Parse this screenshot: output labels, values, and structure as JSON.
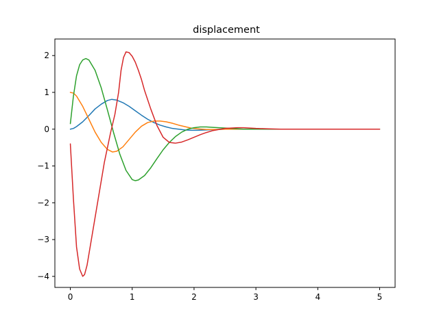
{
  "chart_data": {
    "type": "line",
    "title": "displacement",
    "xlabel": "",
    "ylabel": "",
    "xlim": [
      -0.25,
      5.25
    ],
    "ylim": [
      -4.3,
      2.45
    ],
    "x_ticks": [
      0,
      1,
      2,
      3,
      4,
      5
    ],
    "x_tick_labels": [
      "0",
      "1",
      "2",
      "3",
      "4",
      "5"
    ],
    "y_ticks": [
      -4,
      -3,
      -2,
      -1,
      0,
      1,
      2
    ],
    "y_tick_labels": [
      "−4",
      "−3",
      "−2",
      "−1",
      "0",
      "1",
      "2"
    ],
    "grid": false,
    "legend": "none",
    "series": [
      {
        "color": "#1f77b4",
        "linewidth": 1.5,
        "x": [
          0,
          0.05,
          0.1,
          0.2,
          0.3,
          0.4,
          0.5,
          0.6,
          0.67,
          0.75,
          0.85,
          0.95,
          1.05,
          1.15,
          1.25,
          1.35,
          1.45,
          1.55,
          1.65,
          1.75,
          1.85,
          1.95,
          2.05,
          2.2,
          2.35,
          2.5,
          2.7,
          3.0,
          3.5,
          4.0,
          4.5,
          5.0
        ],
        "y": [
          0,
          0.02,
          0.07,
          0.2,
          0.37,
          0.55,
          0.68,
          0.78,
          0.81,
          0.79,
          0.72,
          0.62,
          0.5,
          0.38,
          0.27,
          0.18,
          0.11,
          0.06,
          0.02,
          0.0,
          -0.02,
          -0.03,
          -0.03,
          -0.02,
          -0.01,
          0.0,
          0.0,
          0.0,
          0.0,
          0.0,
          0.0,
          0.0
        ]
      },
      {
        "color": "#ff7f0e",
        "linewidth": 1.5,
        "x": [
          0,
          0.05,
          0.1,
          0.2,
          0.3,
          0.4,
          0.5,
          0.6,
          0.68,
          0.75,
          0.85,
          0.95,
          1.05,
          1.15,
          1.25,
          1.35,
          1.45,
          1.55,
          1.65,
          1.75,
          1.85,
          1.95,
          2.05,
          2.2,
          2.35,
          2.5,
          2.7,
          3.0,
          3.5,
          4.0,
          4.5,
          5.0
        ],
        "y": [
          1.0,
          0.98,
          0.9,
          0.62,
          0.27,
          -0.08,
          -0.36,
          -0.55,
          -0.62,
          -0.6,
          -0.48,
          -0.28,
          -0.08,
          0.08,
          0.18,
          0.22,
          0.22,
          0.2,
          0.16,
          0.11,
          0.07,
          0.03,
          0.01,
          -0.01,
          -0.01,
          0.0,
          0.0,
          0.0,
          0.0,
          0.0,
          0.0,
          0.0
        ]
      },
      {
        "color": "#2ca02c",
        "linewidth": 1.5,
        "x": [
          0,
          0.05,
          0.1,
          0.15,
          0.2,
          0.25,
          0.3,
          0.4,
          0.5,
          0.6,
          0.7,
          0.8,
          0.9,
          1.0,
          1.05,
          1.1,
          1.2,
          1.3,
          1.4,
          1.5,
          1.6,
          1.7,
          1.8,
          1.9,
          2.0,
          2.1,
          2.2,
          2.3,
          2.4,
          2.5,
          2.6,
          2.7,
          2.8,
          3.0,
          3.5,
          4.0,
          4.5,
          5.0
        ],
        "y": [
          0.15,
          0.9,
          1.45,
          1.75,
          1.88,
          1.92,
          1.88,
          1.6,
          1.12,
          0.52,
          -0.1,
          -0.68,
          -1.12,
          -1.37,
          -1.4,
          -1.38,
          -1.26,
          -1.05,
          -0.8,
          -0.56,
          -0.36,
          -0.2,
          -0.08,
          0.0,
          0.04,
          0.06,
          0.06,
          0.05,
          0.04,
          0.03,
          0.02,
          0.01,
          0.0,
          0.0,
          0.0,
          0.0,
          0.0,
          0.0
        ]
      },
      {
        "color": "#d62728",
        "linewidth": 1.5,
        "x": [
          0,
          0.05,
          0.1,
          0.15,
          0.2,
          0.23,
          0.27,
          0.35,
          0.45,
          0.55,
          0.65,
          0.72,
          0.78,
          0.82,
          0.86,
          0.9,
          0.95,
          1.0,
          1.05,
          1.1,
          1.15,
          1.2,
          1.3,
          1.4,
          1.5,
          1.6,
          1.7,
          1.8,
          1.9,
          2.0,
          2.1,
          2.2,
          2.3,
          2.4,
          2.5,
          2.6,
          2.7,
          2.8,
          2.9,
          3.0,
          3.2,
          3.4,
          3.6,
          3.8,
          4.0,
          4.5,
          5.0
        ],
        "y": [
          -0.4,
          -1.9,
          -3.2,
          -3.8,
          -4.0,
          -3.95,
          -3.7,
          -2.9,
          -1.9,
          -0.9,
          -0.1,
          0.4,
          1.0,
          1.6,
          1.95,
          2.1,
          2.08,
          1.98,
          1.82,
          1.6,
          1.35,
          1.05,
          0.55,
          0.1,
          -0.22,
          -0.36,
          -0.38,
          -0.35,
          -0.29,
          -0.22,
          -0.15,
          -0.09,
          -0.04,
          -0.01,
          0.02,
          0.03,
          0.04,
          0.04,
          0.03,
          0.02,
          0.01,
          0.0,
          0.0,
          0.0,
          0.0,
          0.0,
          0.0
        ]
      }
    ]
  }
}
